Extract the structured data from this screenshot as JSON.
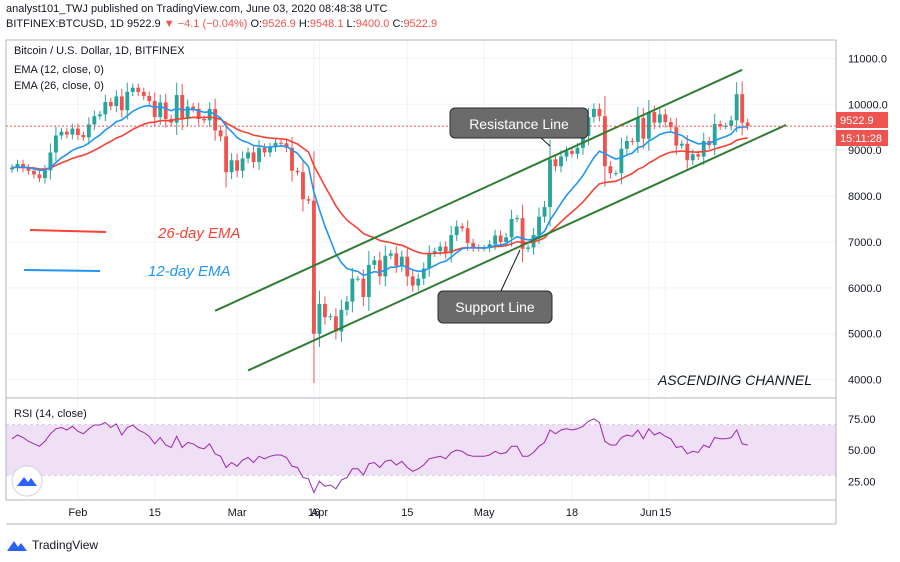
{
  "header": {
    "user": "analyst101_TWJ",
    "published": "published on TradingView.com, June 03, 2020 08:48:38 UTC",
    "symbol": "BITFINEX:BTCUSD, 1D",
    "last": "9522.9",
    "change": "▼ −4.1 (−0.04%)",
    "o_label": "O:",
    "o": "9526.9",
    "h_label": "H:",
    "h": "9548.1",
    "l_label": "L:",
    "l": "9400.0",
    "c_label": "C:",
    "c": "9522.9"
  },
  "legend": {
    "title": "Bitcoin / U.S. Dollar, 1D, BITFINEX",
    "ema12": "EMA (12, close, 0)",
    "ema26": "EMA (26, close, 0)"
  },
  "annotations": {
    "ema26_label": "26-day EMA",
    "ema12_label": "12-day EMA",
    "resistance": "Resistance Line",
    "support": "Support Line",
    "channel": "ASCENDING CHANNEL"
  },
  "price_tags": {
    "price": "9522.9",
    "countdown": "15:11:28"
  },
  "rsi": {
    "label": "RSI (14, close)",
    "ticks": [
      "75.00",
      "50.00",
      "25.00"
    ]
  },
  "footer": {
    "brand": "TradingView"
  },
  "colors": {
    "up": "#26a69a",
    "down": "#ef5350",
    "ema12": "#2196f3",
    "ema26": "#f44336",
    "trendline": "#2e7d32",
    "rsi": "#9c27b0",
    "rsi_band": "#efe0f5",
    "callout": "#6b6b6b"
  },
  "chart_data": [
    {
      "type": "candlestick",
      "title": "Bitcoin / U.S. Dollar, 1D, BITFINEX",
      "y_ticks": [
        "11000.0",
        "10000.0",
        "9000.0",
        "8000.0",
        "7000.0",
        "6000.0",
        "5000.0",
        "4000.0"
      ],
      "x_ticks": [
        "Feb",
        "15",
        "Mar",
        "16",
        "Apr",
        "15",
        "May",
        "18",
        "Jun",
        "15"
      ],
      "ylim": [
        3600,
        11400
      ],
      "start_date": "2020-01-20",
      "axis_end_date": "2020-06-17",
      "closes": [
        8620,
        8700,
        8610,
        8550,
        8470,
        8390,
        8560,
        8950,
        9320,
        9400,
        9340,
        9470,
        9330,
        9280,
        9560,
        9740,
        9780,
        10050,
        9960,
        10170,
        9870,
        10270,
        10360,
        10270,
        10180,
        10070,
        9720,
        10040,
        9680,
        9600,
        10200,
        9680,
        9950,
        9900,
        9680,
        9650,
        9900,
        9430,
        9300,
        8520,
        8780,
        8550,
        8820,
        8950,
        8740,
        9050,
        8950,
        9060,
        9160,
        9150,
        9050,
        8550,
        8520,
        7930,
        7900,
        5000,
        5650,
        5360,
        5380,
        5050,
        5520,
        5700,
        6200,
        6200,
        5800,
        6500,
        6600,
        6250,
        6700,
        6750,
        6480,
        6680,
        6250,
        6050,
        6200,
        6420,
        6750,
        6800,
        6900,
        6750,
        7150,
        7340,
        7300,
        6980,
        6880,
        6860,
        6870,
        6950,
        7140,
        7000,
        7100,
        7500,
        7520,
        6850,
        6880,
        7150,
        7550,
        7760,
        8800,
        8650,
        8860,
        8980,
        8920,
        9050,
        9310,
        9720,
        9900,
        9740,
        8650,
        8500,
        8500,
        9030,
        9200,
        9180,
        9700,
        9250,
        9830,
        9600,
        9780,
        9610,
        9500,
        9100,
        9140,
        8780,
        8910,
        8860,
        9200,
        9110,
        9570,
        9520,
        9530,
        9650,
        10220,
        9600,
        9522.9
      ],
      "series": [
        {
          "name": "EMA (12, close, 0)"
        },
        {
          "name": "EMA (26, close, 0)"
        }
      ],
      "trendlines": [
        {
          "name": "Resistance Line",
          "start": {
            "date": "2020-02-26",
            "price": 5500
          },
          "end": {
            "date": "2020-06-01",
            "price": 10750
          }
        },
        {
          "name": "Support Line",
          "start": {
            "date": "2020-03-03",
            "price": 4200
          },
          "end": {
            "date": "2020-06-09",
            "price": 9550
          }
        }
      ]
    },
    {
      "type": "line",
      "title": "RSI (14, close)",
      "y_ticks": [
        "75.00",
        "50.00",
        "25.00"
      ],
      "ylim": [
        10,
        90
      ],
      "band": [
        30,
        70
      ],
      "values": [
        59,
        62,
        60,
        57,
        55,
        53,
        57,
        63,
        67,
        68,
        66,
        69,
        65,
        63,
        67,
        70,
        70,
        72,
        68,
        71,
        62,
        68,
        70,
        66,
        64,
        61,
        55,
        60,
        54,
        52,
        61,
        52,
        56,
        55,
        52,
        51,
        55,
        47,
        45,
        36,
        40,
        37,
        42,
        44,
        40,
        45,
        43,
        45,
        46,
        46,
        44,
        37,
        36,
        28,
        27,
        16,
        25,
        21,
        22,
        19,
        26,
        28,
        35,
        35,
        30,
        39,
        40,
        36,
        41,
        42,
        38,
        41,
        36,
        33,
        35,
        38,
        43,
        44,
        45,
        43,
        48,
        50,
        49,
        46,
        45,
        45,
        45,
        46,
        49,
        47,
        48,
        53,
        53,
        45,
        45,
        48,
        53,
        56,
        66,
        63,
        66,
        67,
        66,
        67,
        69,
        73,
        75,
        72,
        57,
        54,
        54,
        60,
        62,
        61,
        66,
        59,
        67,
        62,
        64,
        61,
        59,
        52,
        53,
        47,
        49,
        48,
        54,
        52,
        60,
        59,
        59,
        60,
        66,
        55,
        54
      ]
    }
  ]
}
